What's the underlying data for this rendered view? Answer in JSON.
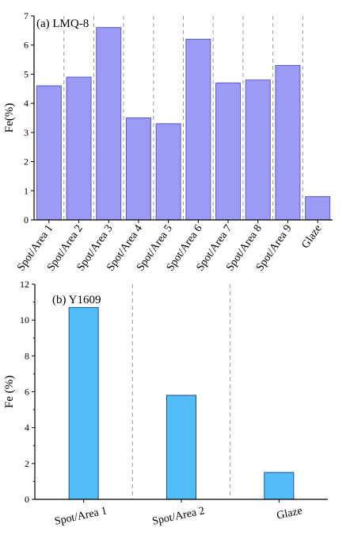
{
  "chart_data": [
    {
      "type": "bar",
      "title": "(a) LMQ-8",
      "ylabel": "Fe(%)",
      "xlabel": "",
      "categories": [
        "Spot/Area 1",
        "Spot/Area 2",
        "Spot/Area 3",
        "Spot/Area 4",
        "Spot/Area 5",
        "Spot/Area 6",
        "Spot/Area 7",
        "Spot/Area 8",
        "Spot/Area 9",
        "Glaze"
      ],
      "values": [
        4.6,
        4.9,
        6.6,
        3.5,
        3.3,
        6.2,
        4.7,
        4.8,
        5.3,
        0.8
      ],
      "ylim": [
        0,
        7
      ],
      "yticks": [
        0,
        1,
        2,
        3,
        4,
        5,
        6,
        7
      ],
      "ytick_labels": [
        "0",
        "1",
        "2",
        "3",
        "4",
        "5",
        "6",
        "7"
      ],
      "bar_color": "#9b9bf5",
      "bar_edge": "#5a5ad0",
      "separators": "dashed gray lines between categories",
      "grid": false,
      "legend": "none"
    },
    {
      "type": "bar",
      "title": "(b) Y1609",
      "ylabel": "Fe (%)",
      "xlabel": "",
      "categories": [
        "Spot/Area 1",
        "Spot/Area 2",
        "Glaze"
      ],
      "values": [
        10.7,
        5.8,
        1.5
      ],
      "ylim": [
        0,
        12
      ],
      "yticks": [
        0,
        2,
        4,
        6,
        8,
        10,
        12
      ],
      "ytick_labels": [
        "0",
        "2",
        "4",
        "6",
        "8",
        "10",
        "12"
      ],
      "bar_color": "#52bdf8",
      "bar_edge": "#1c4f8a",
      "separators": "dashed gray lines between categories",
      "grid": false,
      "legend": "none"
    }
  ]
}
